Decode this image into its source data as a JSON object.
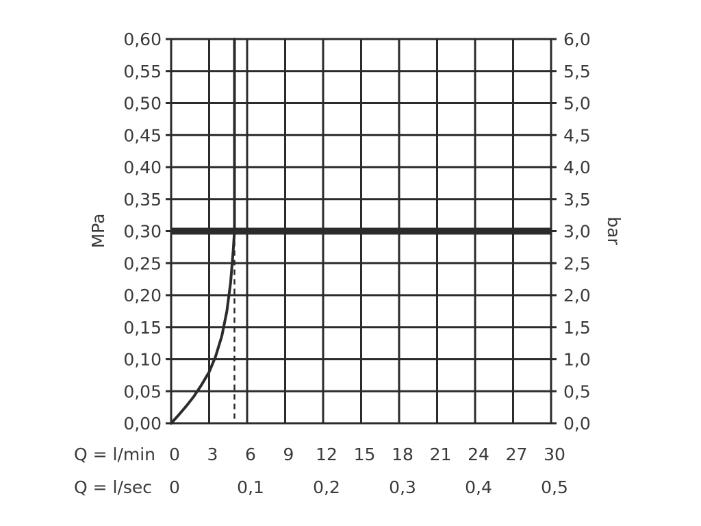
{
  "chart_data": {
    "type": "line",
    "title": "",
    "x_axis": {
      "label_min": "Q = l/min",
      "ticks_min": [
        "0",
        "3",
        "6",
        "9",
        "12",
        "15",
        "18",
        "21",
        "24",
        "27",
        "30"
      ],
      "range_min": [
        0,
        30
      ],
      "label_sec": "Q = l/sec",
      "ticks_sec": [
        "0",
        "0,1",
        "0,2",
        "0,3",
        "0,4",
        "0,5"
      ],
      "range_sec": [
        0,
        0.5
      ]
    },
    "y_left": {
      "label": "MPa",
      "ticks": [
        "0,00",
        "0,05",
        "0,10",
        "0,15",
        "0,20",
        "0,25",
        "0,30",
        "0,35",
        "0,40",
        "0,45",
        "0,50",
        "0,55",
        "0,60"
      ],
      "range": [
        0,
        0.6
      ]
    },
    "y_right": {
      "label": "bar",
      "ticks": [
        "0,0",
        "0,5",
        "1,0",
        "1,5",
        "2,0",
        "2,5",
        "3,0",
        "3,5",
        "4,0",
        "4,5",
        "5,0",
        "5,5",
        "6,0"
      ],
      "range": [
        0,
        6
      ]
    },
    "grid": true,
    "series": [
      {
        "x": [
          0,
          0.6,
          1.2,
          1.8,
          2.4,
          3.0,
          3.5,
          4.0,
          4.4,
          4.7,
          4.9,
          5.0,
          5.0,
          5.0,
          5.0
        ],
        "y": [
          0,
          0.013,
          0.027,
          0.042,
          0.06,
          0.08,
          0.104,
          0.136,
          0.175,
          0.22,
          0.27,
          0.3,
          0.4,
          0.5,
          0.6
        ],
        "color": "#2b2b2b"
      }
    ],
    "reference_line": {
      "y": 0.3,
      "color": "#2b2b2b"
    },
    "reference_drop": {
      "x": 5.0,
      "y": 0.3,
      "style": "dashed"
    }
  }
}
